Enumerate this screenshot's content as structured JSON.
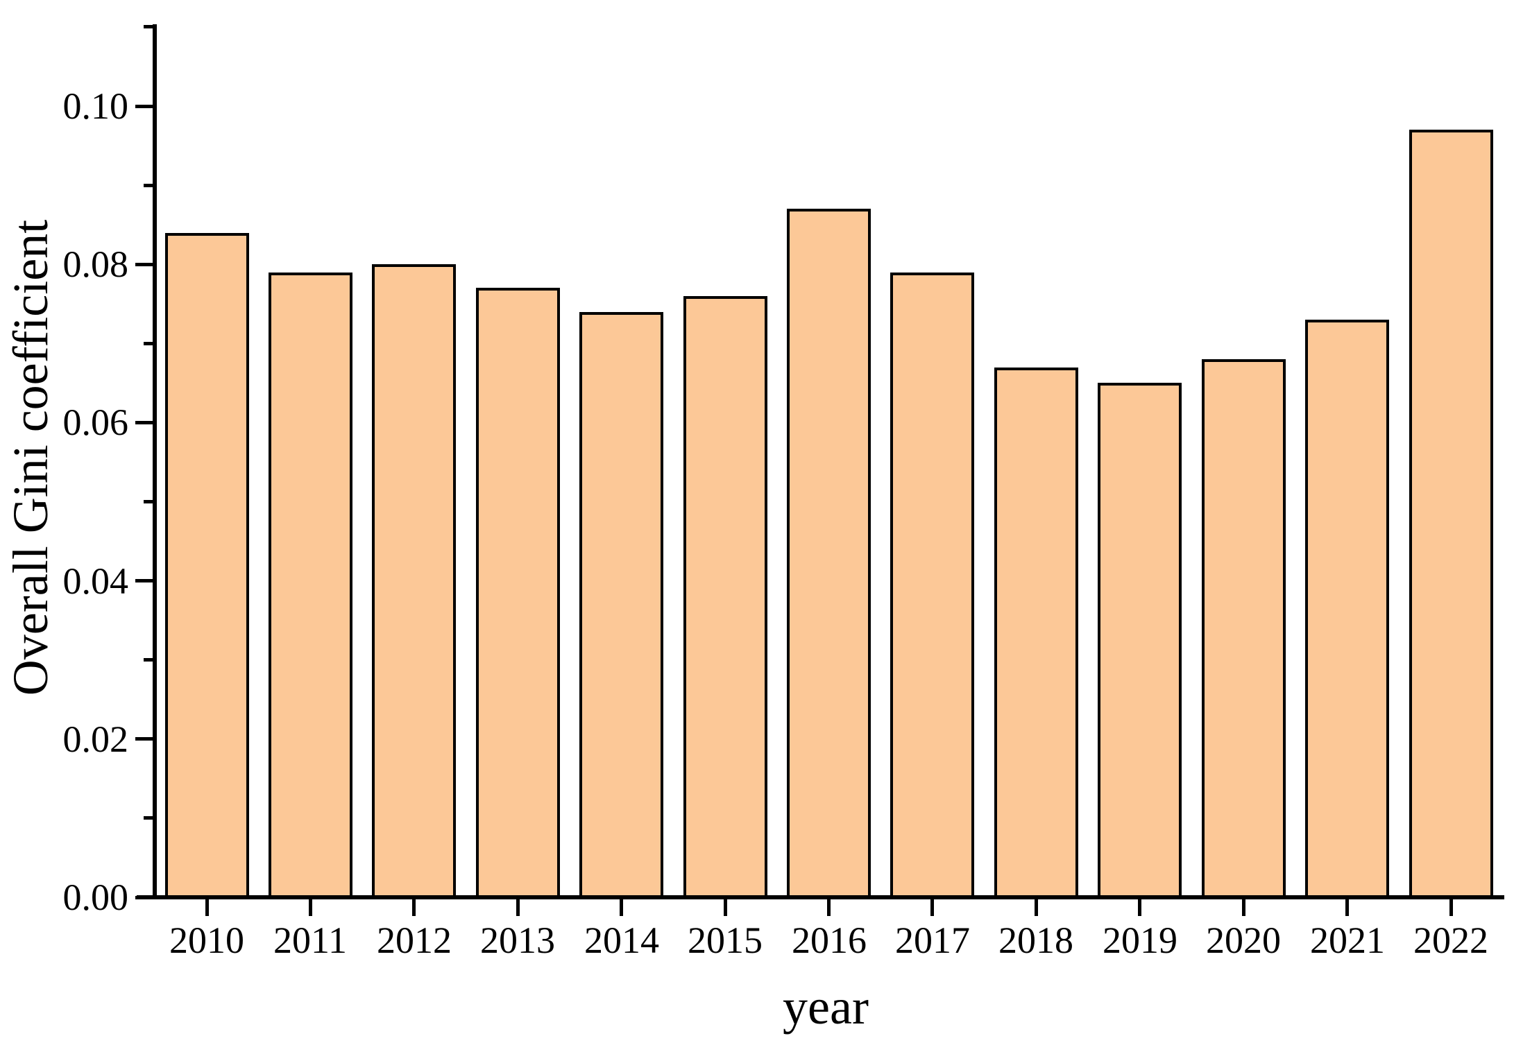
{
  "chart_data": {
    "type": "bar",
    "title": "",
    "categories": [
      "2010",
      "2011",
      "2012",
      "2013",
      "2014",
      "2015",
      "2016",
      "2017",
      "2018",
      "2019",
      "2020",
      "2021",
      "2022"
    ],
    "values": [
      0.084,
      0.079,
      0.08,
      0.077,
      0.074,
      0.076,
      0.087,
      0.079,
      0.067,
      0.065,
      0.068,
      0.073,
      0.097
    ],
    "xlabel": "year",
    "ylabel": "Overall Gini coefficient",
    "ylim": [
      0,
      0.11
    ],
    "y_major_tick_step": 0.02,
    "y_minor_tick_step": 0.01,
    "y_tick_labels": [
      "0.00",
      "0.02",
      "0.04",
      "0.06",
      "0.08",
      "0.10"
    ],
    "y_minor_tick_values": [
      0.01,
      0.03,
      0.05,
      0.07,
      0.09,
      0.11
    ],
    "grid": false,
    "legend": "none",
    "bar_fill_color": "#FCC897",
    "bar_border_color": "#000000",
    "axis_color": "#000000",
    "background_color": "#FFFFFF"
  }
}
